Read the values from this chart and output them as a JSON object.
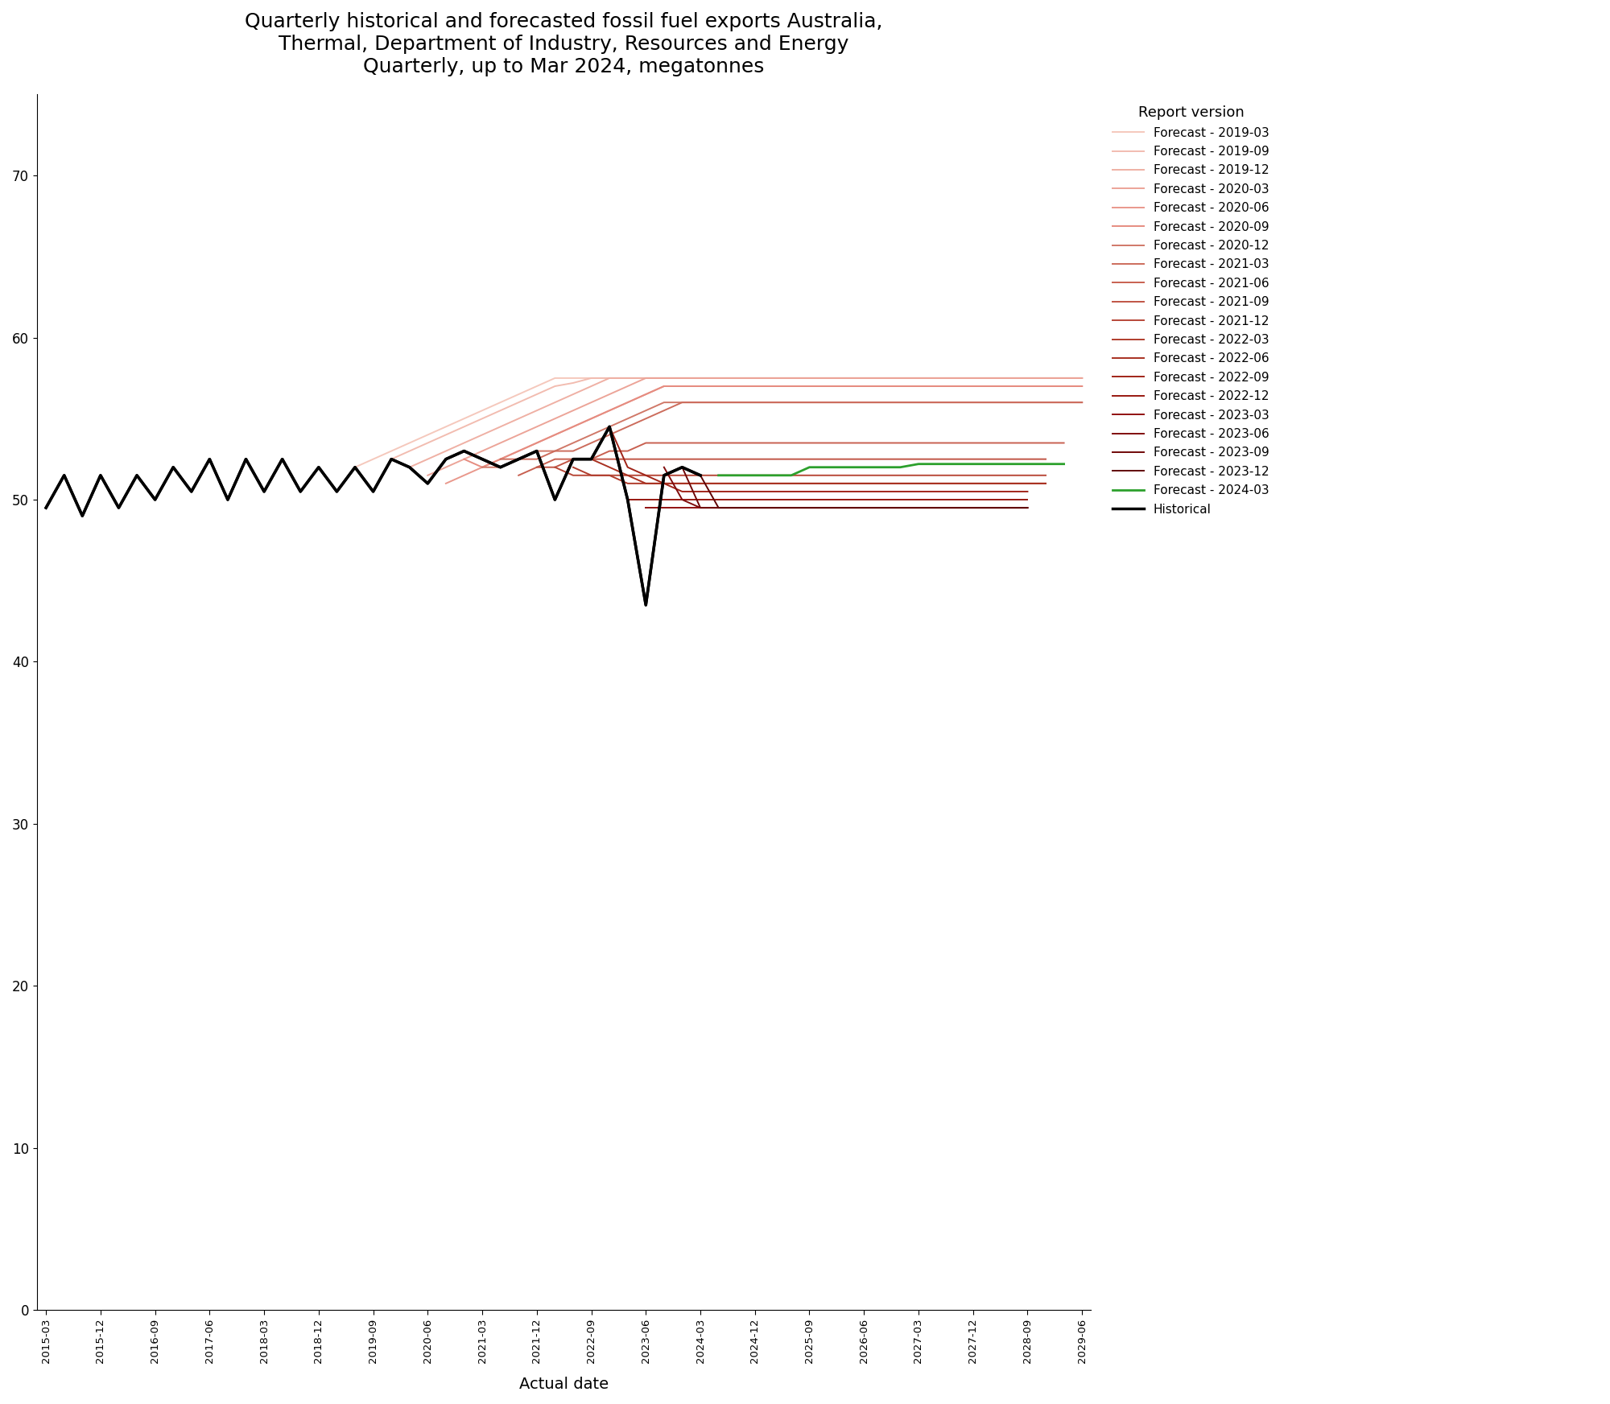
{
  "title": "Quarterly historical and forecasted fossil fuel exports Australia,\nThermal, Department of Industry, Resources and Energy\nQuarterly, up to Mar 2024, megatonnes",
  "xlabel": "Actual date",
  "ylabel": "",
  "ylim": [
    0,
    75
  ],
  "yticks": [
    0,
    10,
    20,
    30,
    40,
    50,
    60,
    70
  ],
  "background_color": "#ffffff",
  "legend_title": "Report version",
  "title_fontsize": 18,
  "xlabel_fontsize": 14,
  "historical_x": [
    "2015-03",
    "2015-06",
    "2015-09",
    "2015-12",
    "2016-03",
    "2016-06",
    "2016-09",
    "2016-12",
    "2017-03",
    "2017-06",
    "2017-09",
    "2017-12",
    "2018-03",
    "2018-06",
    "2018-09",
    "2018-12",
    "2019-03",
    "2019-06",
    "2019-09",
    "2019-12",
    "2020-03",
    "2020-06",
    "2020-09",
    "2020-12",
    "2021-03",
    "2021-06",
    "2021-09",
    "2021-12",
    "2022-03",
    "2022-06",
    "2022-09",
    "2022-12",
    "2023-03",
    "2023-06",
    "2023-09",
    "2023-12",
    "2024-03"
  ],
  "historical_y": [
    49.5,
    51.5,
    49.0,
    51.5,
    49.5,
    51.5,
    50.0,
    52.0,
    50.5,
    52.5,
    50.0,
    52.5,
    50.5,
    52.5,
    50.5,
    52.0,
    50.5,
    52.0,
    50.5,
    52.5,
    52.0,
    51.0,
    52.5,
    53.0,
    52.5,
    52.0,
    52.5,
    53.0,
    50.0,
    52.5,
    52.5,
    54.5,
    50.0,
    43.5,
    51.5,
    52.0,
    51.5
  ],
  "historical_color": "#000000",
  "historical_lw": 2.5,
  "historical_label": "Historical",
  "forecast_colors": {
    "Forecast - 2019-03": "#f5c8bc",
    "Forecast - 2019-09": "#f2bcb0",
    "Forecast - 2019-12": "#efb0a4",
    "Forecast - 2020-03": "#eca498",
    "Forecast - 2020-06": "#e9988c",
    "Forecast - 2020-09": "#e68c80",
    "Forecast - 2020-12": "#d07868",
    "Forecast - 2021-03": "#cc6c5c",
    "Forecast - 2021-06": "#c86050",
    "Forecast - 2021-09": "#c05444",
    "Forecast - 2021-12": "#b84838",
    "Forecast - 2022-03": "#b03c2c",
    "Forecast - 2022-06": "#a83020",
    "Forecast - 2022-09": "#a02418",
    "Forecast - 2022-12": "#981810",
    "Forecast - 2023-03": "#901010",
    "Forecast - 2023-06": "#800c0c",
    "Forecast - 2023-09": "#700808",
    "Forecast - 2023-12": "#600404",
    "Forecast - 2024-03": "#2ca02c"
  },
  "quarters": [
    "2015-03",
    "2015-06",
    "2015-09",
    "2015-12",
    "2016-03",
    "2016-06",
    "2016-09",
    "2016-12",
    "2017-03",
    "2017-06",
    "2017-09",
    "2017-12",
    "2018-03",
    "2018-06",
    "2018-09",
    "2018-12",
    "2019-03",
    "2019-06",
    "2019-09",
    "2019-12",
    "2020-03",
    "2020-06",
    "2020-09",
    "2020-12",
    "2021-03",
    "2021-06",
    "2021-09",
    "2021-12",
    "2022-03",
    "2022-06",
    "2022-09",
    "2022-12",
    "2023-03",
    "2023-06",
    "2023-09",
    "2023-12",
    "2024-03",
    "2024-06",
    "2024-09",
    "2024-12",
    "2025-03",
    "2025-06",
    "2025-09",
    "2025-12",
    "2026-03",
    "2026-06",
    "2026-09",
    "2026-12",
    "2027-03",
    "2027-06",
    "2027-09",
    "2027-12",
    "2028-03",
    "2028-06",
    "2028-09",
    "2028-12",
    "2029-03",
    "2029-06"
  ],
  "xtick_show": [
    "2015-03",
    "2015-12",
    "2016-09",
    "2017-06",
    "2018-03",
    "2018-12",
    "2019-09",
    "2020-06",
    "2021-03",
    "2021-12",
    "2022-09",
    "2023-06",
    "2024-03",
    "2024-12",
    "2025-09",
    "2026-06",
    "2027-03",
    "2027-12",
    "2028-09",
    "2029-06"
  ]
}
